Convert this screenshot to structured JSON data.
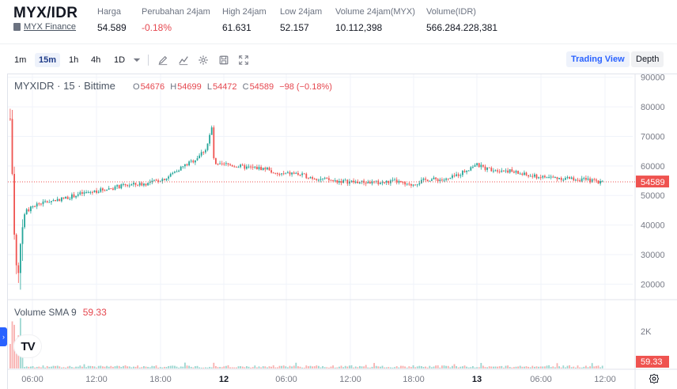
{
  "header": {
    "pair": "MYX/IDR",
    "exchange": "MYX Finance",
    "stats": [
      {
        "label": "Harga",
        "value": "54.589",
        "negative": false
      },
      {
        "label": "Perubahan 24jam",
        "value": "-0.18%",
        "negative": true
      },
      {
        "label": "High 24jam",
        "value": "61.631",
        "negative": false
      },
      {
        "label": "Low 24jam",
        "value": "52.157",
        "negative": false
      },
      {
        "label": "Volume 24jam(MYX)",
        "value": "10.112,398",
        "negative": false
      },
      {
        "label": "Volume(IDR)",
        "value": "566.284.228,381",
        "negative": false
      }
    ]
  },
  "toolbar": {
    "timeframes": [
      "1m",
      "15m",
      "1h",
      "4h",
      "1D"
    ],
    "active_timeframe": "15m",
    "icons": [
      "chevron-down-icon",
      "pencil-icon",
      "indicator-icon",
      "gear-icon",
      "save-icon",
      "fullscreen-icon"
    ],
    "trading_view_label": "Trading View",
    "depth_label": "Depth"
  },
  "legend": {
    "symbol": "MYXIDR · 15 · Bittime",
    "o_key": "O",
    "o": "54676",
    "h_key": "H",
    "h": "54699",
    "l_key": "L",
    "l": "54472",
    "c_key": "C",
    "c": "54589",
    "change": "−98 (−0.18%)"
  },
  "volume_legend": {
    "label": "Volume SMA 9",
    "value": "59.33"
  },
  "colors": {
    "up": "#26a69a",
    "down": "#ef5350",
    "accent": "#2962ff"
  },
  "chart_data": {
    "type": "candlestick",
    "price_axis": {
      "ticks": [
        90000,
        80000,
        70000,
        60000,
        50000,
        40000,
        30000,
        20000
      ],
      "tick_labels": [
        "90000",
        "80000",
        "70000",
        "60000",
        "50000",
        "40000",
        "30000",
        "20000"
      ],
      "range": [
        15000,
        91000
      ]
    },
    "volume_axis": {
      "ticks": [
        2000
      ],
      "tick_labels": [
        "2K"
      ]
    },
    "time_axis": {
      "tick_labels": [
        "06:00",
        "12:00",
        "18:00",
        "12",
        "06:00",
        "12:00",
        "18:00",
        "13",
        "06:00",
        "12:00"
      ],
      "bold_labels": [
        "12",
        "13"
      ]
    },
    "last_price": 54589,
    "last_price_label": "54589",
    "last_volume_label": "59.33",
    "series": [
      {
        "name": "MYXIDR",
        "values": []
      }
    ],
    "grid": true,
    "legend_position": "top-left"
  }
}
